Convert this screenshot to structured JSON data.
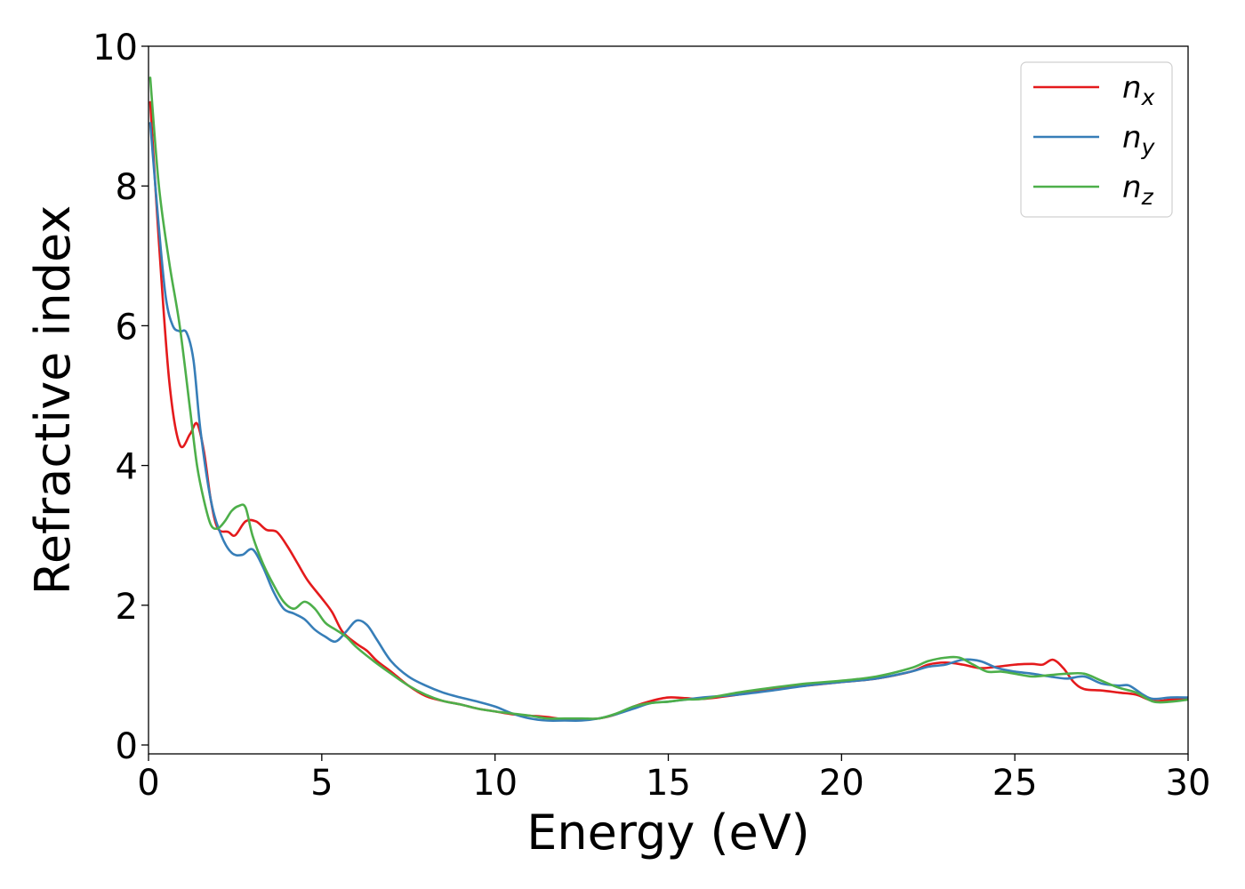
{
  "chart_data": {
    "type": "line",
    "xlabel": "Energy (eV)",
    "ylabel": "Refractive index",
    "xlim": [
      0,
      30
    ],
    "ylim": [
      0,
      10
    ],
    "xticks": [
      0,
      5,
      10,
      15,
      20,
      25,
      30
    ],
    "yticks": [
      0,
      2,
      4,
      6,
      8,
      10
    ],
    "grid": false,
    "legend_position": "top-right",
    "series": [
      {
        "name": "n",
        "subscript": "x",
        "color": "#e41a1c",
        "x": [
          0.05,
          0.3,
          0.6,
          0.9,
          1.2,
          1.4,
          1.6,
          1.8,
          2.0,
          2.3,
          2.5,
          2.8,
          3.1,
          3.4,
          3.7,
          4.0,
          4.3,
          4.6,
          5.0,
          5.3,
          5.6,
          6.0,
          6.3,
          6.6,
          7.0,
          7.5,
          8.0,
          8.5,
          9.0,
          9.5,
          10.0,
          10.5,
          11.0,
          11.5,
          12.0,
          12.5,
          13.0,
          13.5,
          14.0,
          14.5,
          15.0,
          15.5,
          16.0,
          17.0,
          18.0,
          19.0,
          20.0,
          21.0,
          22.0,
          22.5,
          23.0,
          23.5,
          24.0,
          24.5,
          25.0,
          25.5,
          25.8,
          26.1,
          26.4,
          26.7,
          27.0,
          27.5,
          28.0,
          28.5,
          29.0,
          29.5,
          30.0
        ],
        "y": [
          9.2,
          7.2,
          5.2,
          4.3,
          4.45,
          4.6,
          4.2,
          3.5,
          3.1,
          3.05,
          3.0,
          3.2,
          3.2,
          3.08,
          3.05,
          2.85,
          2.6,
          2.35,
          2.1,
          1.9,
          1.62,
          1.45,
          1.35,
          1.2,
          1.05,
          0.85,
          0.7,
          0.63,
          0.58,
          0.52,
          0.48,
          0.44,
          0.42,
          0.4,
          0.37,
          0.37,
          0.38,
          0.44,
          0.55,
          0.63,
          0.68,
          0.67,
          0.66,
          0.72,
          0.8,
          0.85,
          0.9,
          0.95,
          1.05,
          1.15,
          1.18,
          1.15,
          1.1,
          1.12,
          1.15,
          1.16,
          1.15,
          1.22,
          1.1,
          0.9,
          0.8,
          0.78,
          0.75,
          0.72,
          0.63,
          0.65,
          0.67
        ]
      },
      {
        "name": "n",
        "subscript": "y",
        "color": "#377eb8",
        "x": [
          0.05,
          0.3,
          0.5,
          0.7,
          0.9,
          1.1,
          1.3,
          1.5,
          1.8,
          2.1,
          2.4,
          2.7,
          3.0,
          3.3,
          3.6,
          3.9,
          4.2,
          4.5,
          4.8,
          5.1,
          5.4,
          5.7,
          6.0,
          6.3,
          6.6,
          7.0,
          7.5,
          8.0,
          8.5,
          9.0,
          9.5,
          10.0,
          10.5,
          11.0,
          11.5,
          12.0,
          12.5,
          13.0,
          13.5,
          14.0,
          14.5,
          15.0,
          15.5,
          16.0,
          17.0,
          18.0,
          19.0,
          20.0,
          21.0,
          22.0,
          22.5,
          23.0,
          23.5,
          24.0,
          24.5,
          25.0,
          25.5,
          26.0,
          26.5,
          27.0,
          27.5,
          28.0,
          28.3,
          28.7,
          29.0,
          29.5,
          30.0
        ],
        "y": [
          8.9,
          7.4,
          6.4,
          6.0,
          5.92,
          5.9,
          5.5,
          4.5,
          3.5,
          3.0,
          2.75,
          2.72,
          2.8,
          2.55,
          2.2,
          1.95,
          1.88,
          1.8,
          1.65,
          1.55,
          1.48,
          1.62,
          1.78,
          1.72,
          1.5,
          1.2,
          0.98,
          0.85,
          0.75,
          0.68,
          0.62,
          0.55,
          0.45,
          0.38,
          0.35,
          0.35,
          0.35,
          0.38,
          0.44,
          0.52,
          0.6,
          0.62,
          0.65,
          0.68,
          0.72,
          0.78,
          0.85,
          0.9,
          0.95,
          1.05,
          1.12,
          1.15,
          1.22,
          1.2,
          1.1,
          1.05,
          1.02,
          0.98,
          0.95,
          0.98,
          0.88,
          0.85,
          0.85,
          0.72,
          0.66,
          0.68,
          0.68
        ]
      },
      {
        "name": "n",
        "subscript": "z",
        "color": "#4daf4a",
        "x": [
          0.05,
          0.3,
          0.6,
          0.9,
          1.2,
          1.4,
          1.6,
          1.8,
          2.0,
          2.2,
          2.4,
          2.6,
          2.8,
          3.0,
          3.3,
          3.6,
          3.9,
          4.2,
          4.5,
          4.8,
          5.1,
          5.4,
          5.7,
          6.0,
          6.5,
          7.0,
          7.5,
          8.0,
          8.5,
          9.0,
          9.5,
          10.0,
          10.5,
          11.0,
          11.5,
          12.0,
          12.5,
          13.0,
          13.5,
          14.0,
          14.5,
          15.0,
          15.5,
          16.0,
          17.0,
          18.0,
          19.0,
          20.0,
          21.0,
          22.0,
          22.5,
          23.0,
          23.4,
          23.8,
          24.2,
          24.6,
          25.0,
          25.5,
          26.0,
          26.5,
          27.0,
          27.5,
          28.0,
          28.5,
          29.0,
          29.5,
          30.0
        ],
        "y": [
          9.55,
          8.0,
          6.9,
          6.0,
          4.8,
          4.0,
          3.5,
          3.15,
          3.1,
          3.2,
          3.35,
          3.42,
          3.4,
          3.0,
          2.6,
          2.3,
          2.05,
          1.95,
          2.05,
          1.95,
          1.75,
          1.65,
          1.55,
          1.4,
          1.2,
          1.02,
          0.85,
          0.72,
          0.63,
          0.58,
          0.52,
          0.48,
          0.45,
          0.42,
          0.38,
          0.38,
          0.38,
          0.38,
          0.45,
          0.55,
          0.6,
          0.62,
          0.65,
          0.66,
          0.75,
          0.82,
          0.88,
          0.92,
          0.98,
          1.1,
          1.2,
          1.25,
          1.25,
          1.15,
          1.05,
          1.05,
          1.02,
          0.98,
          1.0,
          1.02,
          1.02,
          0.92,
          0.82,
          0.75,
          0.62,
          0.62,
          0.65
        ]
      }
    ]
  }
}
